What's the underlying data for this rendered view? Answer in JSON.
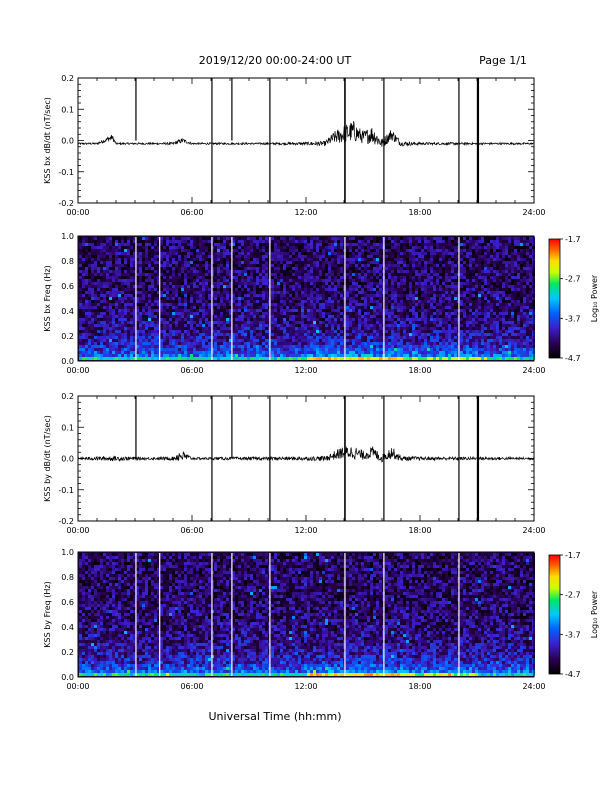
{
  "header": {
    "title": "2019/12/20  00:00-24:00 UT",
    "page": "Page 1/1"
  },
  "footer": {
    "xlabel": "Universal Time (hh:mm)"
  },
  "chart_data": [
    {
      "type": "line",
      "ylabel": "KSS bx dB/dt (nT/sec)",
      "xlim": [
        0,
        24
      ],
      "ylim": [
        -0.2,
        0.2
      ],
      "xticks": [
        "00:00",
        "06:00",
        "12:00",
        "18:00",
        "24:00"
      ],
      "yticks": [
        "-0.2",
        "-0.1",
        "0.0",
        "0.1",
        "0.2"
      ],
      "series": [
        {
          "x": [
            0,
            1,
            1.8,
            2,
            3,
            4,
            5,
            5.5,
            6,
            7,
            8,
            9,
            10,
            11,
            12,
            13,
            13.5,
            14,
            14.5,
            15,
            15.5,
            16,
            16.5,
            17,
            18,
            19,
            20,
            21,
            22,
            23,
            24
          ],
          "values": [
            -0.01,
            -0.01,
            0.01,
            -0.01,
            -0.01,
            -0.01,
            -0.01,
            0.0,
            -0.01,
            -0.01,
            -0.01,
            -0.01,
            -0.01,
            -0.01,
            -0.01,
            -0.01,
            0.01,
            0.02,
            0.03,
            0.01,
            0.02,
            -0.01,
            0.02,
            -0.01,
            -0.01,
            -0.01,
            -0.01,
            -0.01,
            -0.01,
            -0.01,
            -0.01
          ],
          "envelope": [
            0.003,
            0.003,
            0.01,
            0.003,
            0.003,
            0.003,
            0.004,
            0.008,
            0.003,
            0.003,
            0.003,
            0.003,
            0.003,
            0.004,
            0.005,
            0.008,
            0.02,
            0.03,
            0.035,
            0.02,
            0.03,
            0.015,
            0.02,
            0.008,
            0.004,
            0.004,
            0.004,
            0.003,
            0.003,
            0.003,
            0.003
          ]
        }
      ],
      "spikes": [
        {
          "x": 3.05,
          "y0": 0.0,
          "y1": 0.2
        },
        {
          "x": 7.05,
          "y0": -0.2,
          "y1": 0.2
        },
        {
          "x": 8.1,
          "y0": 0.0,
          "y1": 0.2
        },
        {
          "x": 10.1,
          "y0": -0.2,
          "y1": 0.2
        },
        {
          "x": 14.05,
          "y0": -0.2,
          "y1": 0.2
        },
        {
          "x": 16.1,
          "y0": -0.2,
          "y1": 0.2
        },
        {
          "x": 20.05,
          "y0": -0.2,
          "y1": 0.2
        },
        {
          "x": 21.05,
          "y0": -0.2,
          "y1": 0.2
        }
      ]
    },
    {
      "type": "heatmap",
      "ylabel": "KSS bx Freq (Hz)",
      "xlim": [
        0,
        24
      ],
      "ylim": [
        0,
        1.0
      ],
      "xticks": [
        "00:00",
        "06:00",
        "12:00",
        "18:00",
        "24:00"
      ],
      "yticks": [
        "0.0",
        "0.2",
        "0.4",
        "0.6",
        "0.8",
        "1.0"
      ],
      "colorbar": {
        "label": "Log₁₀ Power",
        "range": [
          -4.7,
          -1.7
        ],
        "ticks": [
          "-1.7",
          "-2.7",
          "-3.7",
          "-4.7"
        ],
        "colors": [
          "#000000",
          "#2a0050",
          "#3c1ec8",
          "#0064ff",
          "#00c8ff",
          "#00e664",
          "#c8ff00",
          "#ffdc00",
          "#ff6400",
          "#ff0000"
        ]
      },
      "gaps": [
        3.05,
        4.3,
        7.05,
        8.1,
        10.1,
        14.05,
        16.1,
        20.05
      ]
    },
    {
      "type": "line",
      "ylabel": "KSS by dB/dt (nT/sec)",
      "xlim": [
        0,
        24
      ],
      "ylim": [
        -0.2,
        0.2
      ],
      "xticks": [
        "00:00",
        "06:00",
        "12:00",
        "18:00",
        "24:00"
      ],
      "yticks": [
        "-0.2",
        "-0.1",
        "0.0",
        "0.1",
        "0.2"
      ],
      "series": [
        {
          "x": [
            0,
            1,
            2,
            3,
            4,
            5,
            5.4,
            6,
            7,
            8,
            9,
            10,
            11,
            12,
            13,
            13.5,
            14,
            14.5,
            15,
            15.5,
            16,
            16.5,
            17,
            18,
            19,
            20,
            21,
            22,
            23,
            24
          ],
          "values": [
            0.0,
            0.0,
            0.0,
            0.0,
            0.0,
            0.0,
            0.01,
            0.0,
            0.0,
            0.0,
            0.0,
            0.0,
            0.0,
            0.0,
            0.0,
            0.01,
            0.02,
            0.02,
            0.01,
            0.02,
            0.0,
            0.02,
            0.0,
            0.0,
            0.0,
            0.0,
            0.0,
            0.0,
            0.0,
            0.0
          ],
          "envelope": [
            0.004,
            0.006,
            0.008,
            0.005,
            0.004,
            0.006,
            0.02,
            0.004,
            0.004,
            0.005,
            0.005,
            0.005,
            0.006,
            0.006,
            0.008,
            0.015,
            0.02,
            0.022,
            0.015,
            0.02,
            0.012,
            0.02,
            0.008,
            0.006,
            0.005,
            0.005,
            0.005,
            0.005,
            0.004,
            0.004
          ]
        }
      ],
      "spikes": [
        {
          "x": 3.05,
          "y0": 0.0,
          "y1": 0.2
        },
        {
          "x": 7.05,
          "y0": -0.2,
          "y1": 0.2
        },
        {
          "x": 8.1,
          "y0": 0.0,
          "y1": 0.2
        },
        {
          "x": 10.1,
          "y0": -0.2,
          "y1": 0.2
        },
        {
          "x": 14.05,
          "y0": -0.2,
          "y1": 0.2
        },
        {
          "x": 16.1,
          "y0": -0.2,
          "y1": 0.2
        },
        {
          "x": 20.05,
          "y0": -0.2,
          "y1": 0.2
        },
        {
          "x": 21.05,
          "y0": -0.2,
          "y1": 0.2
        }
      ]
    },
    {
      "type": "heatmap",
      "ylabel": "KSS by Freq (Hz)",
      "xlim": [
        0,
        24
      ],
      "ylim": [
        0,
        1.0
      ],
      "xticks": [
        "00:00",
        "06:00",
        "12:00",
        "18:00",
        "24:00"
      ],
      "yticks": [
        "0.0",
        "0.2",
        "0.4",
        "0.6",
        "0.8",
        "1.0"
      ],
      "colorbar": {
        "label": "Log₁₀ Power",
        "range": [
          -4.7,
          -1.7
        ],
        "ticks": [
          "-1.7",
          "-2.7",
          "-3.7",
          "-4.7"
        ],
        "colors": [
          "#000000",
          "#2a0050",
          "#3c1ec8",
          "#0064ff",
          "#00c8ff",
          "#00e664",
          "#c8ff00",
          "#ffdc00",
          "#ff6400",
          "#ff0000"
        ]
      },
      "gaps": [
        3.05,
        4.3,
        7.05,
        8.1,
        10.1,
        14.05,
        16.1,
        20.05
      ]
    }
  ]
}
